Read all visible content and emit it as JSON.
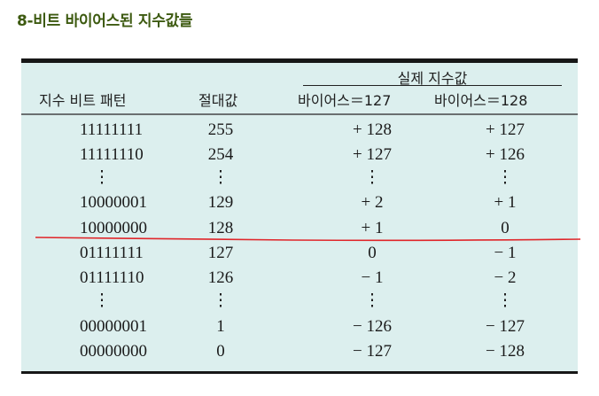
{
  "caption": "8-비트 바이어스된 지수값들",
  "table": {
    "span_header": "실제 지수값",
    "headers": [
      "지수 비트 패턴",
      "절대값",
      "바이어스＝127",
      "바이어스＝128"
    ],
    "rows": [
      [
        "11111111",
        "255",
        "+ 128",
        "+ 127"
      ],
      [
        "11111110",
        "254",
        "+ 127",
        "+ 126"
      ],
      [
        "⋮",
        "⋮",
        "⋮",
        "⋮"
      ],
      [
        "10000001",
        "129",
        "+ 2",
        "+ 1"
      ],
      [
        "10000000",
        "128",
        "+ 1",
        "0"
      ],
      [
        "01111111",
        "127",
        "0",
        "− 1"
      ],
      [
        "01111110",
        "126",
        "− 1",
        "− 2"
      ],
      [
        "⋮",
        "⋮",
        "⋮",
        "⋮"
      ],
      [
        "00000001",
        "1",
        "− 126",
        "− 127"
      ],
      [
        "00000000",
        "0",
        "− 127",
        "− 128"
      ]
    ]
  },
  "colors": {
    "caption": "#3d5a10",
    "table_bg": "#dcefee",
    "annotation_line": "#e0262a"
  }
}
